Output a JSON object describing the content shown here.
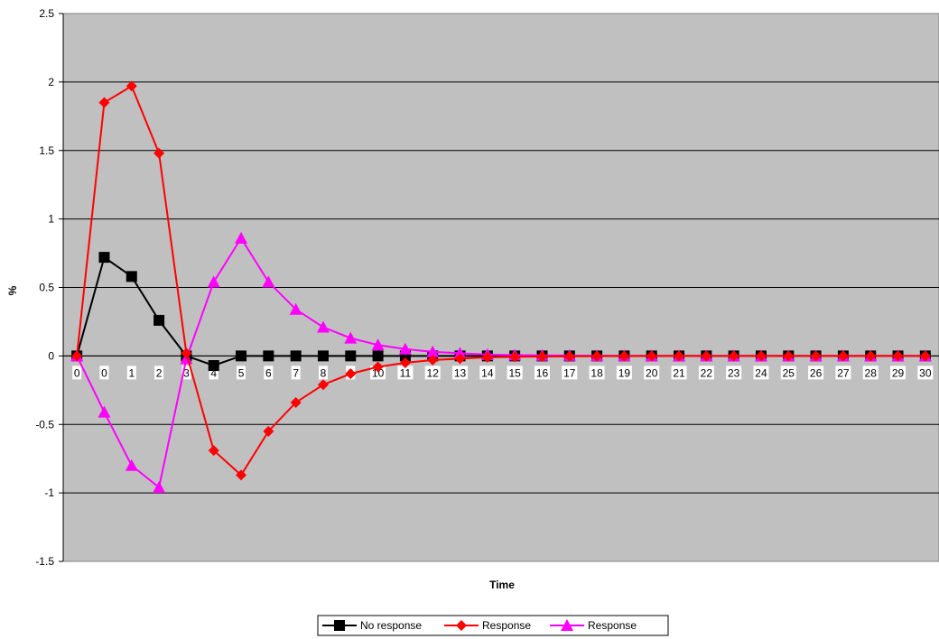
{
  "chart_data": {
    "type": "line",
    "title": "",
    "xlabel": "Time",
    "ylabel": "%",
    "ylim": [
      -1.5,
      2.5
    ],
    "y_ticks": [
      -1.5,
      -1,
      -0.5,
      0,
      0.5,
      1,
      1.5,
      2,
      2.5
    ],
    "y_tick_labels": [
      "-1.5",
      "-1",
      "-0.5",
      "0",
      "0.5",
      "1",
      "1.5",
      "2",
      "2.5"
    ],
    "categories": [
      "0",
      "0",
      "1",
      "2",
      "3",
      "4",
      "5",
      "6",
      "7",
      "8",
      "9",
      "10",
      "11",
      "12",
      "13",
      "14",
      "15",
      "16",
      "17",
      "18",
      "19",
      "20",
      "21",
      "22",
      "23",
      "24",
      "25",
      "26",
      "27",
      "28",
      "29",
      "30"
    ],
    "grid": "horizontal",
    "plot_background": "#c0c0c0",
    "legend_position": "bottom",
    "series": [
      {
        "name": "No response",
        "color": "#000000",
        "marker": "square",
        "values": [
          0,
          0.72,
          0.58,
          0.26,
          0.0,
          -0.07,
          0,
          0,
          0,
          0,
          0,
          0,
          0,
          0,
          0,
          0,
          0,
          0,
          0,
          0,
          0,
          0,
          0,
          0,
          0,
          0,
          0,
          0,
          0,
          0,
          0,
          0
        ]
      },
      {
        "name": "Response",
        "color": "#ff0000",
        "marker": "diamond",
        "values": [
          0,
          1.85,
          1.97,
          1.48,
          0.02,
          -0.69,
          -0.87,
          -0.55,
          -0.34,
          -0.21,
          -0.13,
          -0.08,
          -0.05,
          -0.03,
          -0.02,
          -0.01,
          -0.007,
          -0.004,
          -0.003,
          -0.002,
          -0.001,
          0,
          0,
          0,
          0,
          0,
          0,
          0,
          0,
          0,
          0,
          0
        ]
      },
      {
        "name": "Response",
        "color": "#ff00ff",
        "marker": "triangle",
        "values": [
          0,
          -0.41,
          -0.8,
          -0.96,
          -0.02,
          0.54,
          0.86,
          0.54,
          0.34,
          0.21,
          0.13,
          0.08,
          0.05,
          0.03,
          0.02,
          0.01,
          0.007,
          0.004,
          0.003,
          0.002,
          0.001,
          0,
          0,
          0,
          0,
          0,
          0,
          0,
          0,
          0,
          0,
          0
        ]
      }
    ]
  }
}
